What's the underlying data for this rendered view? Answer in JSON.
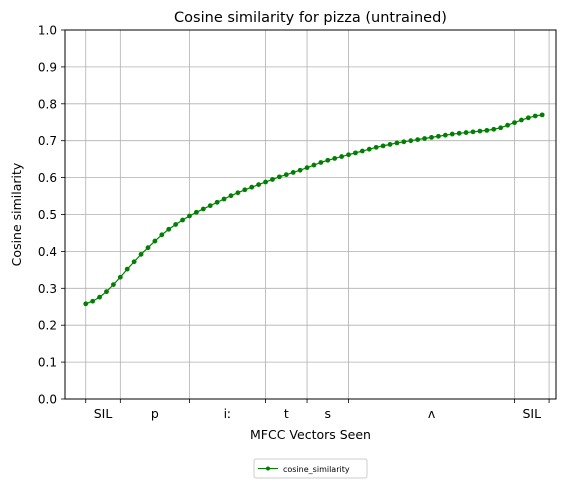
{
  "chart_data": {
    "type": "line",
    "title": "Cosine similarity for pizza (untrained)",
    "xlabel": "MFCC Vectors Seen",
    "ylabel": "Cosine similarity",
    "ylim": [
      0,
      1.0
    ],
    "xlim": [
      -3,
      68
    ],
    "grid": true,
    "legend_position": "below the plot, centered",
    "yticks": [
      "0.0",
      "0.1",
      "0.2",
      "0.3",
      "0.4",
      "0.5",
      "0.6",
      "0.7",
      "0.8",
      "0.9",
      "1.0"
    ],
    "boundaries": [
      0,
      5,
      15,
      26,
      32,
      38,
      62,
      67
    ],
    "phoneme_labels": [
      {
        "label": "SIL",
        "x": 2.5
      },
      {
        "label": "p",
        "x": 10
      },
      {
        "label": "iː",
        "x": 20.5
      },
      {
        "label": "t",
        "x": 29
      },
      {
        "label": "s",
        "x": 35
      },
      {
        "label": "ʌ",
        "x": 50
      },
      {
        "label": "SIL",
        "x": 64.5
      }
    ],
    "series": [
      {
        "name": "cosine_similarity",
        "color": "#008000",
        "marker": "circle",
        "x": [
          0,
          1,
          2,
          3,
          4,
          5,
          6,
          7,
          8,
          9,
          10,
          11,
          12,
          13,
          14,
          15,
          16,
          17,
          18,
          19,
          20,
          21,
          22,
          23,
          24,
          25,
          26,
          27,
          28,
          29,
          30,
          31,
          32,
          33,
          34,
          35,
          36,
          37,
          38,
          39,
          40,
          41,
          42,
          43,
          44,
          45,
          46,
          47,
          48,
          49,
          50,
          51,
          52,
          53,
          54,
          55,
          56,
          57,
          58,
          59,
          60,
          61,
          62,
          63,
          64,
          65,
          66
        ],
        "values": [
          0.258,
          0.265,
          0.276,
          0.291,
          0.31,
          0.33,
          0.352,
          0.372,
          0.392,
          0.41,
          0.428,
          0.445,
          0.46,
          0.473,
          0.485,
          0.496,
          0.506,
          0.515,
          0.524,
          0.533,
          0.542,
          0.551,
          0.559,
          0.567,
          0.574,
          0.581,
          0.588,
          0.595,
          0.602,
          0.608,
          0.614,
          0.62,
          0.627,
          0.634,
          0.641,
          0.647,
          0.652,
          0.657,
          0.662,
          0.667,
          0.672,
          0.677,
          0.682,
          0.686,
          0.69,
          0.694,
          0.697,
          0.7,
          0.703,
          0.706,
          0.709,
          0.712,
          0.715,
          0.718,
          0.72,
          0.722,
          0.724,
          0.726,
          0.728,
          0.731,
          0.735,
          0.742,
          0.749,
          0.756,
          0.762,
          0.767,
          0.77
        ]
      }
    ]
  }
}
